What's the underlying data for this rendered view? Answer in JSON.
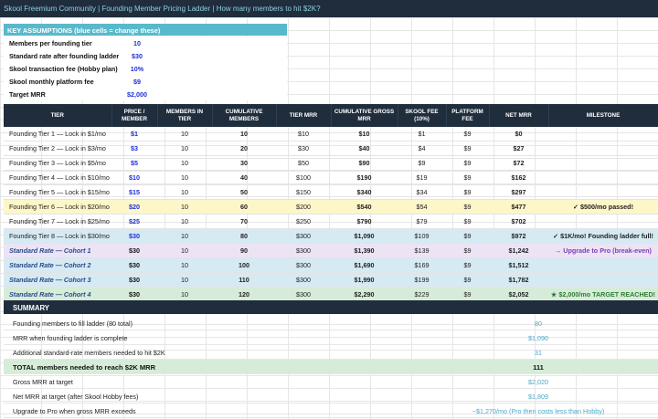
{
  "title_bar": "Skool Freemium Community  |  Founding Member Pricing Ladder  |  How many members to hit $2K?",
  "assumptions": {
    "title": "KEY ASSUMPTIONS  (blue cells = change these)",
    "rows": [
      {
        "label": "Members per founding tier",
        "value": "10"
      },
      {
        "label": "Standard rate after founding ladder",
        "value": "$30"
      },
      {
        "label": "Skool transaction fee (Hobby plan)",
        "value": "10%"
      },
      {
        "label": "Skool monthly platform fee",
        "value": "$9"
      },
      {
        "label": "Target MRR",
        "value": "$2,000"
      }
    ]
  },
  "table": {
    "headers": [
      "TIER",
      "PRICE / MEMBER",
      "MEMBERS IN TIER",
      "CUMULATIVE MEMBERS",
      "TIER MRR",
      "CUMULATIVE GROSS MRR",
      "SKOOL FEE (10%)",
      "PLATFORM FEE",
      "NET MRR",
      "MILESTONE"
    ],
    "rows": [
      {
        "tier": "Founding Tier 1 — Lock in $1/mo",
        "price": "$1",
        "members": "10",
        "cum": "10",
        "tier_mrr": "$10",
        "gross": "$10",
        "fee": "$1",
        "platform": "$9",
        "net": "$0",
        "milestone": ""
      },
      {
        "tier": "Founding Tier 2 — Lock in $3/mo",
        "price": "$3",
        "members": "10",
        "cum": "20",
        "tier_mrr": "$30",
        "gross": "$40",
        "fee": "$4",
        "platform": "$9",
        "net": "$27",
        "milestone": ""
      },
      {
        "tier": "Founding Tier 3 — Lock in $5/mo",
        "price": "$5",
        "members": "10",
        "cum": "30",
        "tier_mrr": "$50",
        "gross": "$90",
        "fee": "$9",
        "platform": "$9",
        "net": "$72",
        "milestone": ""
      },
      {
        "tier": "Founding Tier 4 — Lock in $10/mo",
        "price": "$10",
        "members": "10",
        "cum": "40",
        "tier_mrr": "$100",
        "gross": "$190",
        "fee": "$19",
        "platform": "$9",
        "net": "$162",
        "milestone": ""
      },
      {
        "tier": "Founding Tier 5 — Lock in $15/mo",
        "price": "$15",
        "members": "10",
        "cum": "50",
        "tier_mrr": "$150",
        "gross": "$340",
        "fee": "$34",
        "platform": "$9",
        "net": "$297",
        "milestone": ""
      },
      {
        "tier": "Founding Tier 6 — Lock in $20/mo",
        "price": "$20",
        "members": "10",
        "cum": "60",
        "tier_mrr": "$200",
        "gross": "$540",
        "fee": "$54",
        "platform": "$9",
        "net": "$477",
        "milestone": "✓ $500/mo passed!"
      },
      {
        "tier": "Founding Tier 7 — Lock in $25/mo",
        "price": "$25",
        "members": "10",
        "cum": "70",
        "tier_mrr": "$250",
        "gross": "$790",
        "fee": "$79",
        "platform": "$9",
        "net": "$702",
        "milestone": ""
      },
      {
        "tier": "Founding Tier 8 — Lock in $30/mo",
        "price": "$30",
        "members": "10",
        "cum": "80",
        "tier_mrr": "$300",
        "gross": "$1,090",
        "fee": "$109",
        "platform": "$9",
        "net": "$972",
        "milestone": "✓ $1K/mo!  Founding ladder full!"
      },
      {
        "tier": "Standard Rate — Cohort 1",
        "price": "$30",
        "members": "10",
        "cum": "90",
        "tier_mrr": "$300",
        "gross": "$1,390",
        "fee": "$139",
        "platform": "$9",
        "net": "$1,242",
        "milestone": "→ Upgrade to Pro (break-even)"
      },
      {
        "tier": "Standard Rate — Cohort 2",
        "price": "$30",
        "members": "10",
        "cum": "100",
        "tier_mrr": "$300",
        "gross": "$1,690",
        "fee": "$169",
        "platform": "$9",
        "net": "$1,512",
        "milestone": ""
      },
      {
        "tier": "Standard Rate — Cohort 3",
        "price": "$30",
        "members": "10",
        "cum": "110",
        "tier_mrr": "$300",
        "gross": "$1,990",
        "fee": "$199",
        "platform": "$9",
        "net": "$1,782",
        "milestone": ""
      },
      {
        "tier": "Standard Rate — Cohort 4",
        "price": "$30",
        "members": "10",
        "cum": "120",
        "tier_mrr": "$300",
        "gross": "$2,290",
        "fee": "$229",
        "platform": "$9",
        "net": "$2,052",
        "milestone": "★ $2,000/mo TARGET REACHED!"
      }
    ]
  },
  "summary": {
    "title": "SUMMARY",
    "rows": [
      {
        "label": "Founding members to fill ladder (80 total)",
        "value": "80"
      },
      {
        "label": "MRR when founding ladder is complete",
        "value": "$1,090"
      },
      {
        "label": "Additional standard-rate members needed to hit $2K",
        "value": "31"
      },
      {
        "label": "TOTAL members needed to reach $2K MRR",
        "value": "111"
      },
      {
        "label": "Gross MRR at target",
        "value": "$2,020"
      },
      {
        "label": "Net MRR at target (after Skool Hobby fees)",
        "value": "$1,809"
      },
      {
        "label": "Upgrade to Pro when gross MRR exceeds",
        "value": "~$1,270/mo  (Pro then costs less than Hobby)"
      }
    ]
  },
  "colors": {
    "header_dark": "#1f2d3d",
    "accent_teal": "#59b9cc",
    "input_blue": "#1d2fd6",
    "row_yellow": "#fdf6c8",
    "row_blue": "#d6eaf3",
    "row_purple": "#ece3f5",
    "row_green": "#d6ecd8"
  }
}
